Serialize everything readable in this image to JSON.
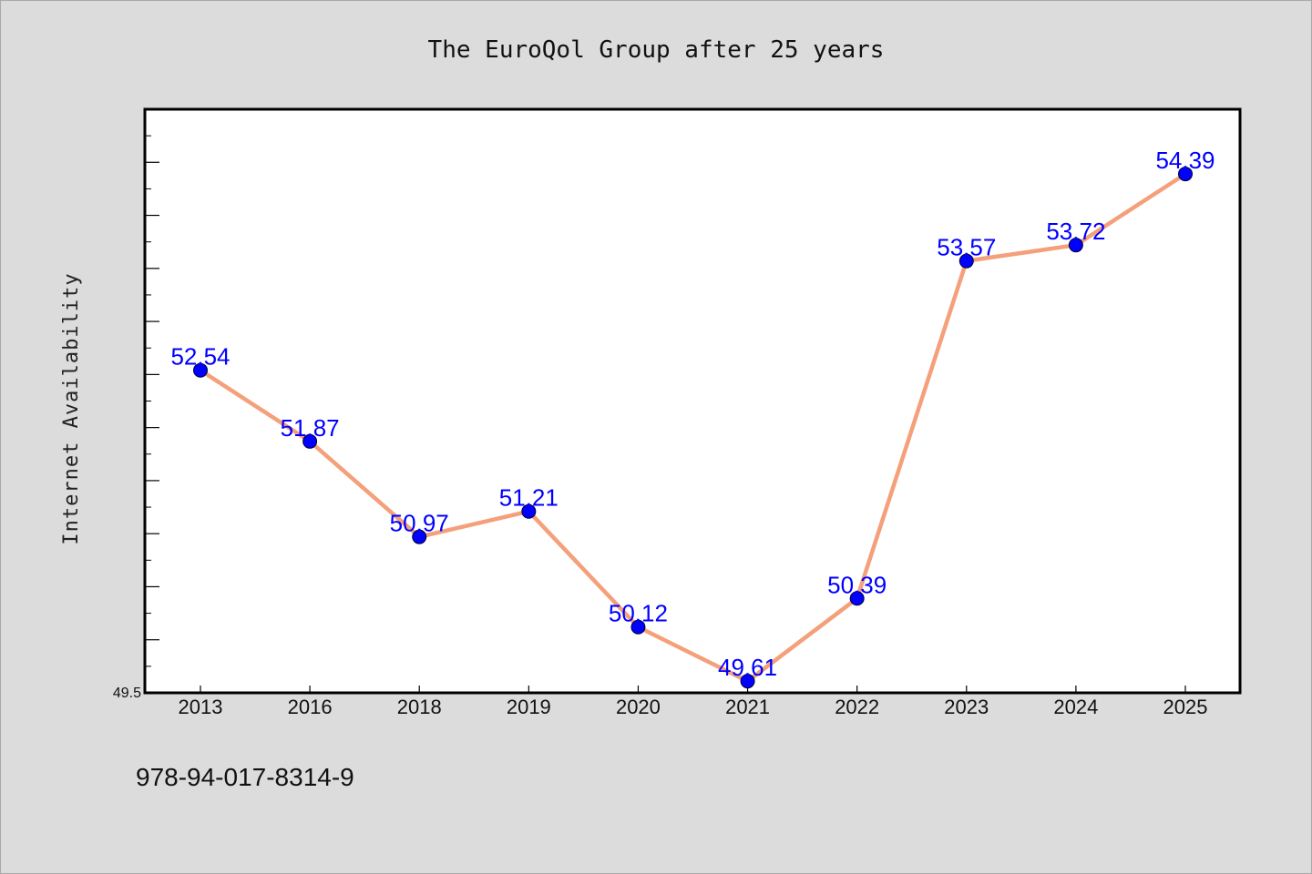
{
  "colors": {
    "background": "#dcdcdc",
    "plot_background": "#ffffff",
    "line": "#f4a07a",
    "marker": "#0000ff",
    "label": "#0000ff"
  },
  "footer_text": "978-94-017-8314-9",
  "chart_data": {
    "type": "line",
    "title": "The EuroQol Group after 25 years",
    "xlabel": "",
    "ylabel": "Internet Availability",
    "categories": [
      "2013",
      "2016",
      "2018",
      "2019",
      "2020",
      "2021",
      "2022",
      "2023",
      "2024",
      "2025"
    ],
    "series": [
      {
        "values": [
          52.54,
          51.87,
          50.97,
          51.21,
          50.12,
          49.61,
          50.39,
          53.57,
          53.72,
          54.39
        ],
        "labels": [
          "52.54",
          "51.87",
          "50.97",
          "51.21",
          "50.12",
          "49.61",
          "50.39",
          "53.57",
          "53.72",
          "54.39"
        ]
      }
    ],
    "ylim": [
      49.5,
      55.0
    ],
    "ytick_step": 0.5,
    "yticks_labeled": [
      "49.5"
    ],
    "grid": false,
    "legend": "none"
  }
}
